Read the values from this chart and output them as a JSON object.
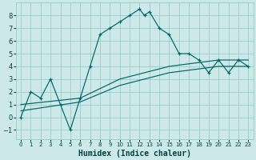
{
  "xlabel": "Humidex (Indice chaleur)",
  "bg_color": "#cce8e8",
  "grid_color": "#99cccc",
  "line_color": "#006666",
  "tick_color": "#004444",
  "xlim": [
    -0.5,
    23.5
  ],
  "ylim": [
    -1.7,
    9.0
  ],
  "xticks": [
    0,
    1,
    2,
    3,
    4,
    5,
    6,
    7,
    8,
    9,
    10,
    11,
    12,
    13,
    14,
    15,
    16,
    17,
    18,
    19,
    20,
    21,
    22,
    23
  ],
  "yticks": [
    -1,
    0,
    1,
    2,
    3,
    4,
    5,
    6,
    7,
    8
  ],
  "main_x": [
    0,
    1,
    2,
    3,
    4,
    5,
    6,
    7,
    8,
    9,
    10,
    11,
    12,
    12.5,
    13,
    14,
    15,
    16,
    17,
    18,
    19,
    20,
    21,
    22,
    23
  ],
  "main_y": [
    0,
    2,
    1.5,
    3,
    1,
    -1,
    1.5,
    4,
    6.5,
    7,
    7.5,
    8,
    8.5,
    8.0,
    8.3,
    7.0,
    6.5,
    5.0,
    5.0,
    4.5,
    3.5,
    4.5,
    3.5,
    4.5,
    4.0
  ],
  "line2_x": [
    0,
    6,
    10,
    15,
    20,
    23
  ],
  "line2_y": [
    1,
    1.5,
    3,
    4,
    4.5,
    4.5
  ],
  "line3_x": [
    0,
    6,
    10,
    15,
    20,
    23
  ],
  "line3_y": [
    0.5,
    1.2,
    2.5,
    3.5,
    4.0,
    4.0
  ],
  "xlabel_fontsize": 7,
  "tick_fontsize_x": 5,
  "tick_fontsize_y": 6
}
